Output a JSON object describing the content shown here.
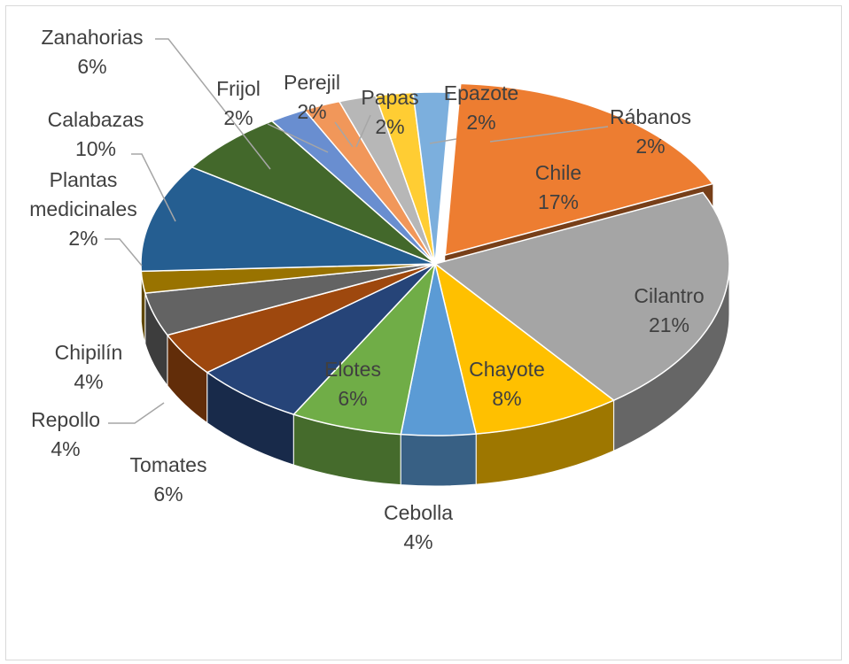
{
  "chart_data": {
    "type": "pie",
    "style": "3d-exploded",
    "title": "",
    "legend": "none",
    "slices": [
      {
        "label": "Chile",
        "value": 17,
        "pct": "17%",
        "color": "#ED7D31"
      },
      {
        "label": "Cilantro",
        "value": 21,
        "pct": "21%",
        "color": "#A5A5A5"
      },
      {
        "label": "Chayote",
        "value": 8,
        "pct": "8%",
        "color": "#FFC000"
      },
      {
        "label": "Cebolla",
        "value": 4,
        "pct": "4%",
        "color": "#5B9BD5"
      },
      {
        "label": "Elotes",
        "value": 6,
        "pct": "6%",
        "color": "#70AD47"
      },
      {
        "label": "Tomates",
        "value": 6,
        "pct": "6%",
        "color": "#264478"
      },
      {
        "label": "Repollo",
        "value": 4,
        "pct": "4%",
        "color": "#9E480E"
      },
      {
        "label": "Chipilín",
        "value": 4,
        "pct": "4%",
        "color": "#636363"
      },
      {
        "label": "Plantas medicinales",
        "value": 2,
        "pct": "2%",
        "color": "#997300"
      },
      {
        "label": "Calabazas",
        "value": 10,
        "pct": "10%",
        "color": "#255E91"
      },
      {
        "label": "Zanahorias",
        "value": 6,
        "pct": "6%",
        "color": "#43682B"
      },
      {
        "label": "Frijol",
        "value": 2,
        "pct": "2%",
        "color": "#698ED0"
      },
      {
        "label": "Perejil",
        "value": 2,
        "pct": "2%",
        "color": "#F1975A"
      },
      {
        "label": "Papas",
        "value": 2,
        "pct": "2%",
        "color": "#B7B7B7"
      },
      {
        "label": "Epazote",
        "value": 2,
        "pct": "2%",
        "color": "#FFCD33"
      },
      {
        "label": "Rábanos",
        "value": 2,
        "pct": "2%",
        "color": "#7CAFDD"
      }
    ]
  }
}
